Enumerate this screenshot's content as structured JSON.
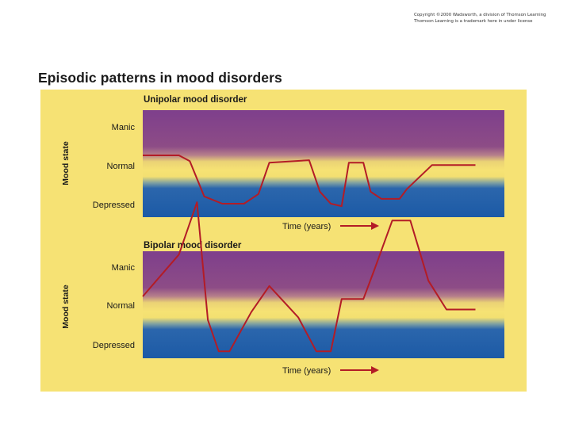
{
  "copyright": {
    "line1": "Copyright ©2000 Wadsworth, a division of Thomson Learning",
    "line2": "Thomson Learning is a trademark here in under license"
  },
  "title": "Episodic patterns in mood disorders",
  "colors": {
    "background": "#f6e274",
    "manic_band": "#7e3f8c",
    "depressed_band": "#1f5fb0",
    "line": "#b31c26",
    "arrow": "#b31c26"
  },
  "states": [
    "Manic",
    "Normal",
    "Depressed"
  ],
  "charts": [
    {
      "id": "unipolar",
      "title": "Unipolar mood disorder",
      "ylabel": "Mood state",
      "xlabel": "Time (years)",
      "levels": {
        "manic": "Manic",
        "normal": "Normal",
        "depressed": "Depressed"
      },
      "trace": [
        [
          0,
          0
        ],
        [
          10,
          0
        ],
        [
          13,
          -0.12
        ],
        [
          17,
          -0.85
        ],
        [
          22,
          -1
        ],
        [
          28,
          -1
        ],
        [
          32,
          -0.8
        ],
        [
          35,
          -0.15
        ],
        [
          46,
          -0.1
        ],
        [
          49,
          -0.75
        ],
        [
          52,
          -1
        ],
        [
          55,
          -1.05
        ],
        [
          57,
          -0.15
        ],
        [
          61,
          -0.15
        ],
        [
          63,
          -0.75
        ],
        [
          66,
          -0.9
        ],
        [
          71,
          -0.9
        ],
        [
          73,
          -0.7
        ],
        [
          80,
          -0.2
        ],
        [
          92,
          -0.2
        ]
      ]
    },
    {
      "id": "bipolar",
      "title": "Bipolar mood disorder",
      "ylabel": "Mood state",
      "xlabel": "Time (years)",
      "levels": {
        "manic": "Manic",
        "normal": "Normal",
        "depressed": "Depressed"
      },
      "trace": [
        [
          0,
          0
        ],
        [
          10,
          0.8
        ],
        [
          15,
          1.8
        ],
        [
          18,
          -0.45
        ],
        [
          21,
          -1.05
        ],
        [
          24,
          -1.05
        ],
        [
          30,
          -0.3
        ],
        [
          35,
          0.2
        ],
        [
          43,
          -0.4
        ],
        [
          48,
          -1.05
        ],
        [
          52,
          -1.05
        ],
        [
          55,
          -0.05
        ],
        [
          61,
          -0.05
        ],
        [
          64,
          0.5
        ],
        [
          69,
          1.45
        ],
        [
          74,
          1.45
        ],
        [
          79,
          0.3
        ],
        [
          84,
          -0.25
        ],
        [
          92,
          -0.25
        ]
      ]
    }
  ]
}
